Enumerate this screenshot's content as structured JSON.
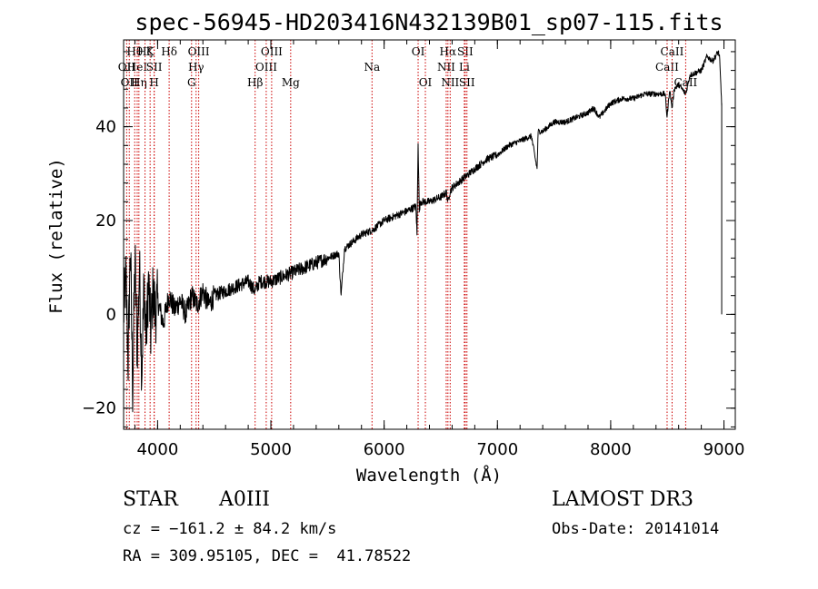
{
  "chart_data": {
    "type": "line",
    "title": "spec-56945-HD203416N432139B01_sp07-115.fits",
    "xlabel": "Wavelength (Å)",
    "ylabel": "Flux (relative)",
    "xlim": [
      3700,
      9100
    ],
    "ylim": [
      -24.5,
      58.5
    ],
    "x_ticks": [
      4000,
      5000,
      6000,
      7000,
      8000,
      9000
    ],
    "y_ticks": [
      -20,
      0,
      20,
      40
    ],
    "grid": false,
    "series": [
      {
        "name": "flux",
        "x": [
          3700,
          3720,
          3740,
          3760,
          3780,
          3800,
          3820,
          3840,
          3860,
          3880,
          3900,
          3920,
          3940,
          3960,
          3980,
          4000,
          4050,
          4100,
          4150,
          4200,
          4250,
          4300,
          4350,
          4400,
          4450,
          4500,
          4600,
          4700,
          4800,
          4860,
          4900,
          5000,
          5100,
          5200,
          5300,
          5400,
          5500,
          5600,
          5620,
          5650,
          5700,
          5800,
          5900,
          6000,
          6100,
          6200,
          6280,
          6290,
          6300,
          6310,
          6320,
          6350,
          6400,
          6500,
          6550,
          6563,
          6580,
          6600,
          6700,
          6800,
          6900,
          7000,
          7100,
          7200,
          7300,
          7350,
          7360,
          7400,
          7500,
          7600,
          7700,
          7800,
          7850,
          7900,
          8000,
          8100,
          8200,
          8300,
          8400,
          8480,
          8498,
          8520,
          8542,
          8560,
          8600,
          8662,
          8700,
          8800,
          8850,
          8900,
          8950,
          8960,
          8970,
          8980
        ],
        "y": [
          0,
          8,
          -10,
          15,
          -16,
          12,
          -8,
          10,
          -12,
          6,
          -5,
          7,
          -4,
          5,
          0,
          3,
          -2,
          4,
          1,
          3,
          0,
          4,
          2,
          5,
          2,
          4,
          5,
          6,
          7,
          5,
          7,
          7,
          8,
          9,
          10,
          11,
          12,
          13,
          4,
          14,
          15,
          17,
          18,
          20,
          21,
          22,
          23,
          17,
          37,
          22,
          24,
          24,
          24,
          25,
          26,
          24,
          26,
          27,
          29,
          31,
          33,
          34,
          36,
          37,
          38,
          31,
          39,
          39,
          41,
          41,
          42,
          43,
          44,
          42,
          45,
          46,
          46,
          47,
          47,
          47,
          42,
          48,
          44,
          48,
          49,
          47,
          51,
          52,
          55,
          54,
          56,
          55,
          50,
          45
        ]
      }
    ],
    "line_markers": [
      {
        "wavelength": 3727,
        "label": "OII",
        "row": 2
      },
      {
        "wavelength": 3750,
        "label": "OII",
        "row": 3
      },
      {
        "wavelength": 3798,
        "label": "Hθ",
        "row": 1
      },
      {
        "wavelength": 3820,
        "label": "HeI",
        "row": 2
      },
      {
        "wavelength": 3835,
        "label": "Hη",
        "row": 3
      },
      {
        "wavelength": 3889,
        "label": "Hζ",
        "row": 1
      },
      {
        "wavelength": 3934,
        "label": "K",
        "row": 1
      },
      {
        "wavelength": 3970,
        "label": "SII",
        "row": 2
      },
      {
        "wavelength": 3970,
        "label": "H",
        "row": 3
      },
      {
        "wavelength": 4102,
        "label": "Hδ",
        "row": 1
      },
      {
        "wavelength": 4300,
        "label": "G",
        "row": 3
      },
      {
        "wavelength": 4340,
        "label": "Hγ",
        "row": 2
      },
      {
        "wavelength": 4363,
        "label": "OIII",
        "row": 1
      },
      {
        "wavelength": 4861,
        "label": "Hβ",
        "row": 3
      },
      {
        "wavelength": 4959,
        "label": "OIII",
        "row": 2
      },
      {
        "wavelength": 5007,
        "label": "OIII",
        "row": 1
      },
      {
        "wavelength": 5175,
        "label": "Mg",
        "row": 3
      },
      {
        "wavelength": 5893,
        "label": "Na",
        "row": 2
      },
      {
        "wavelength": 6300,
        "label": "OI",
        "row": 1
      },
      {
        "wavelength": 6364,
        "label": "OI",
        "row": 3
      },
      {
        "wavelength": 6548,
        "label": "NII",
        "row": 2
      },
      {
        "wavelength": 6563,
        "label": "Hα",
        "row": 1
      },
      {
        "wavelength": 6583,
        "label": "NII",
        "row": 3
      },
      {
        "wavelength": 6708,
        "label": "Li",
        "row": 2
      },
      {
        "wavelength": 6716,
        "label": "SII",
        "row": 1
      },
      {
        "wavelength": 6731,
        "label": "SII",
        "row": 3
      },
      {
        "wavelength": 8498,
        "label": "CaII",
        "row": 2
      },
      {
        "wavelength": 8542,
        "label": "CaII",
        "row": 1
      },
      {
        "wavelength": 8662,
        "label": "CaII",
        "row": 3
      }
    ]
  },
  "info": {
    "object_class": "STAR",
    "subclass": "A0III",
    "survey": "LAMOST DR3",
    "velocity": "cz = −161.2 ± 84.2 km/s",
    "obs_date": "Obs-Date: 20141014",
    "coordinates": "RA = 309.95105, DEC =  41.78522"
  },
  "colors": {
    "spectrum": "#000000",
    "line_markers": "#cc0000",
    "axes": "#000000"
  }
}
